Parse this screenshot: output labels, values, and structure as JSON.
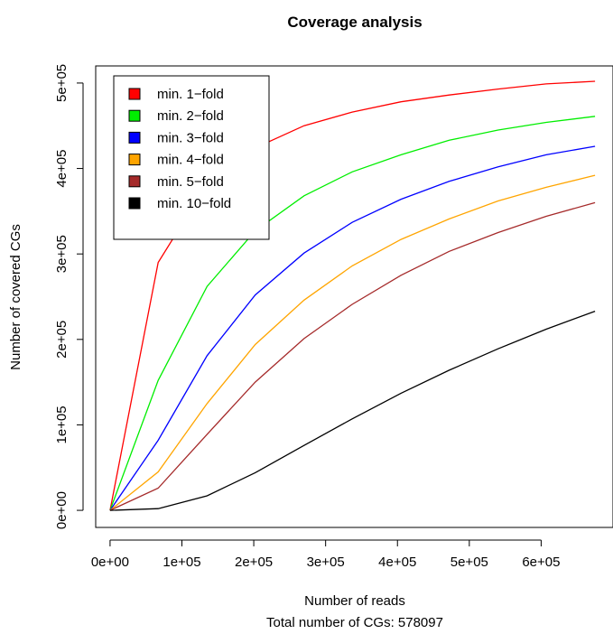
{
  "chart_data": {
    "type": "line",
    "title": "Coverage analysis",
    "xlabel": "Number of reads",
    "subtitle": "Total number of CGs: 578097",
    "ylabel": "Number of covered CGs",
    "xlim": [
      -20000,
      700000
    ],
    "ylim": [
      -20000,
      520000
    ],
    "x_ticks": [
      0,
      100000,
      200000,
      300000,
      400000,
      500000,
      600000
    ],
    "x_tick_labels": [
      "0e+00",
      "1e+05",
      "2e+05",
      "3e+05",
      "4e+05",
      "5e+05",
      "6e+05"
    ],
    "y_ticks": [
      0,
      100000,
      200000,
      300000,
      400000,
      500000
    ],
    "y_tick_labels": [
      "0e+00",
      "1e+05",
      "2e+05",
      "3e+05",
      "4e+05",
      "5e+05"
    ],
    "grid": false,
    "legend_position": "top-left",
    "x": [
      0,
      67000,
      135000,
      202000,
      270000,
      337000,
      405000,
      472000,
      540000,
      607000,
      675000
    ],
    "series": [
      {
        "name": "min. 1−fold",
        "color": "#ff0000",
        "values": [
          0,
          290000,
          382000,
          424000,
          450000,
          466000,
          478000,
          486000,
          493000,
          499000,
          502000
        ]
      },
      {
        "name": "min. 2−fold",
        "color": "#00ee00",
        "values": [
          0,
          152000,
          262000,
          327000,
          368000,
          396000,
          416000,
          433000,
          445000,
          454000,
          461000
        ]
      },
      {
        "name": "min. 3−fold",
        "color": "#0000ff",
        "values": [
          0,
          82000,
          181000,
          252000,
          301000,
          337000,
          364000,
          385000,
          402000,
          416000,
          426000
        ]
      },
      {
        "name": "min. 4−fold",
        "color": "#ffa500",
        "values": [
          0,
          45000,
          125000,
          194000,
          246000,
          286000,
          317000,
          341000,
          362000,
          378000,
          392000
        ]
      },
      {
        "name": "min. 5−fold",
        "color": "#a52a2a",
        "values": [
          0,
          26000,
          89000,
          150000,
          201000,
          241000,
          275000,
          303000,
          325000,
          344000,
          360000
        ]
      },
      {
        "name": "min. 10−fold",
        "color": "#000000",
        "values": [
          0,
          2000,
          17000,
          44000,
          76000,
          107000,
          137000,
          164000,
          189000,
          212000,
          233000
        ]
      }
    ]
  }
}
